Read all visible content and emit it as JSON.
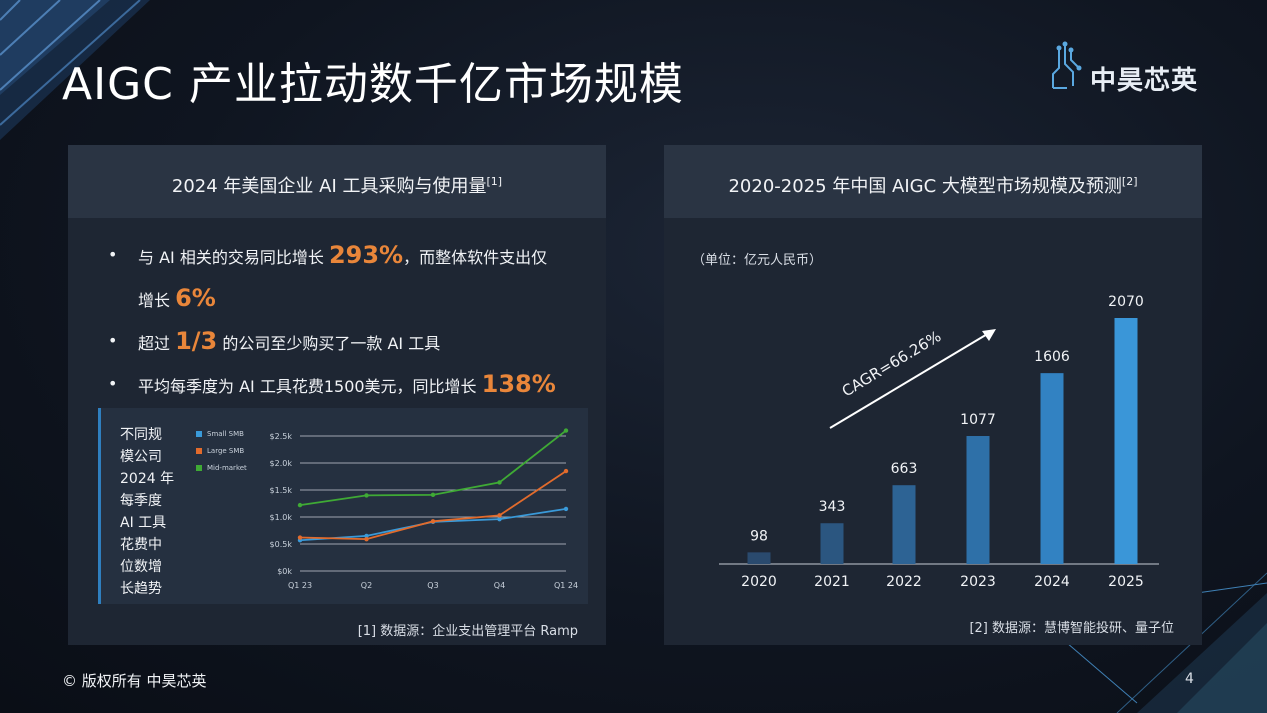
{
  "slide": {
    "title": "AIGC 产业拉动数千亿市场规模",
    "logo_text": "中昊芯英",
    "copyright": "© 版权所有 中昊芯英",
    "page_number": "4"
  },
  "left_panel": {
    "heading": "2024 年美国企业 AI 工具采购与使用量",
    "heading_ref": "[1]",
    "bullets": [
      {
        "pre": "与 AI 相关的交易同比增长 ",
        "highlight": "293%",
        "post": "，而整体软件支出仅"
      },
      {
        "pre": "增长 ",
        "highlight": "6%",
        "post": ""
      },
      {
        "pre": "超过 ",
        "highlight": "1/3",
        "post": " 的公司至少购买了一款 AI 工具"
      },
      {
        "pre": "平均每季度为 AI 工具花费1500美元，同比增长 ",
        "highlight": "138%",
        "post": ""
      }
    ],
    "chart_side_title": [
      "不同规",
      "模公司",
      "2024 年",
      "每季度",
      "AI 工具",
      "花费中",
      "位数增",
      "长趋势"
    ],
    "source": "[1] 数据源：企业支出管理平台 Ramp"
  },
  "right_panel": {
    "heading": "2020-2025 年中国 AIGC 大模型市场规模及预测",
    "heading_ref": "[2]",
    "unit": "（单位：亿元人民币）",
    "cagr": "CAGR=66.26%",
    "source": "[2] 数据源：慧博智能投研、量子位"
  },
  "chart_data": [
    {
      "type": "line",
      "categories": [
        "Q1 23",
        "Q2",
        "Q3",
        "Q4",
        "Q1 24"
      ],
      "ylim": [
        0,
        2.5
      ],
      "y_ticks": [
        "$0k",
        "$0.5k",
        "$1.0k",
        "$1.5k",
        "$2.0k",
        "$2.5k"
      ],
      "grid": true,
      "legend_position": "top-left",
      "series": [
        {
          "name": "Small SMB",
          "color": "#3a9ad9",
          "values": [
            0.57,
            0.65,
            0.91,
            0.96,
            1.15
          ]
        },
        {
          "name": "Large SMB",
          "color": "#e26b2c",
          "values": [
            0.62,
            0.59,
            0.92,
            1.03,
            1.85
          ]
        },
        {
          "name": "Mid-market",
          "color": "#3faa35",
          "values": [
            1.22,
            1.4,
            1.41,
            1.64,
            2.6
          ]
        }
      ]
    },
    {
      "type": "bar",
      "categories": [
        "2020",
        "2021",
        "2022",
        "2023",
        "2024",
        "2025"
      ],
      "values": [
        98,
        343,
        663,
        1077,
        1606,
        2070
      ],
      "bar_colors": [
        "#2a4a6e",
        "#2b5680",
        "#2d6394",
        "#2e70a8",
        "#3282c2",
        "#3a96d8"
      ]
    }
  ]
}
